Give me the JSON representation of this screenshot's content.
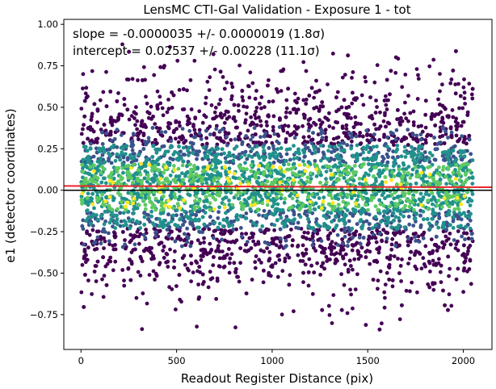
{
  "chart_data": {
    "type": "scatter",
    "title": "LensMC CTI-Gal Validation - Exposure 1 - tot",
    "xlabel": "Readout Register Distance (pix)",
    "ylabel": "e1 (detector coordinates)",
    "xlim": [
      -90,
      2150
    ],
    "ylim": [
      -0.96,
      1.03
    ],
    "xticks": [
      "0",
      "500",
      "1000",
      "1500",
      "2000"
    ],
    "xtick_values": [
      0,
      500,
      1000,
      1500,
      2000
    ],
    "yticks": [
      "−0.75",
      "−0.50",
      "−0.25",
      "0.00",
      "0.25",
      "0.50",
      "0.75",
      "1.00"
    ],
    "ytick_values": [
      -0.75,
      -0.5,
      -0.25,
      0,
      0.25,
      0.5,
      0.75,
      1.0
    ],
    "grid": false,
    "annotations": [
      "slope = -0.0000035 +/- 0.0000019 (1.8σ)",
      "intercept = 0.02537 +/- 0.00228 (11.1σ)"
    ],
    "fit_line": {
      "slope": -3.5e-06,
      "intercept": 0.02537,
      "color": "#e8262a"
    },
    "zero_line": {
      "y": 0.0,
      "color": "#000000"
    },
    "point_cloud": {
      "x_range": [
        0,
        2050
      ],
      "y_center": 0.02,
      "y_spread": 0.28,
      "y_min": -0.85,
      "y_max": 0.88,
      "colormap": [
        "#440154",
        "#3b528b",
        "#21918c",
        "#5ec962",
        "#fde725"
      ]
    }
  }
}
